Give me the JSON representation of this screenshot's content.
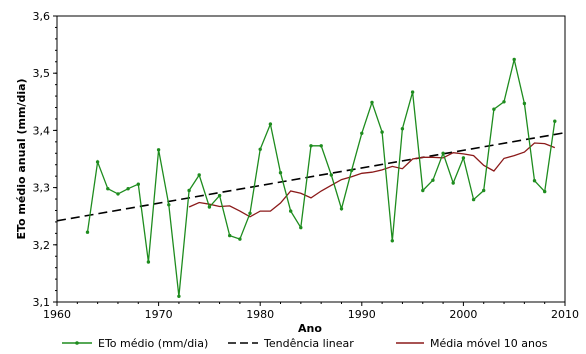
{
  "chart_data": {
    "type": "line",
    "xlabel": "Ano",
    "ylabel": "ETo médio anual (mm/dia)",
    "xlim": [
      1960,
      2010
    ],
    "ylim": [
      3.1,
      3.6
    ],
    "x_ticks": [
      "1960",
      "1970",
      "1980",
      "1990",
      "2000",
      "2010"
    ],
    "y_ticks": [
      "3,1",
      "3,2",
      "3,3",
      "3,4",
      "3,5",
      "3,6"
    ],
    "grid": "none",
    "legend_position": "bottom",
    "series": [
      {
        "name": "ETo médio (mm/dia)",
        "style": "line-with-markers",
        "color": "#1e8c1e",
        "x": [
          1963,
          1964,
          1965,
          1966,
          1967,
          1968,
          1969,
          1970,
          1971,
          1972,
          1973,
          1974,
          1975,
          1976,
          1977,
          1978,
          1979,
          1980,
          1981,
          1982,
          1983,
          1984,
          1985,
          1986,
          1987,
          1988,
          1989,
          1990,
          1991,
          1992,
          1993,
          1994,
          1995,
          1996,
          1997,
          1998,
          1999,
          2000,
          2001,
          2002,
          2003,
          2004,
          2005,
          2006,
          2007,
          2008,
          2009
        ],
        "values": [
          3.222,
          3.345,
          3.298,
          3.289,
          3.298,
          3.306,
          3.17,
          3.366,
          3.27,
          3.11,
          3.295,
          3.322,
          3.266,
          3.286,
          3.216,
          3.21,
          3.255,
          3.367,
          3.411,
          3.326,
          3.259,
          3.23,
          3.373,
          3.373,
          3.322,
          3.263,
          3.33,
          3.395,
          3.449,
          3.397,
          3.207,
          3.403,
          3.467,
          3.295,
          3.313,
          3.36,
          3.308,
          3.352,
          3.279,
          3.295,
          3.437,
          3.45,
          3.524,
          3.447,
          3.312,
          3.293,
          3.416
        ]
      },
      {
        "name": "Tendência linear",
        "style": "dashed",
        "color": "#000000",
        "x": [
          1960,
          2010
        ],
        "values": [
          3.242,
          3.396
        ]
      },
      {
        "name": "Média móvel 10 anos",
        "style": "line",
        "color": "#8b1a1a",
        "x": [
          1973,
          1974,
          1975,
          1976,
          1977,
          1978,
          1979,
          1980,
          1981,
          1982,
          1983,
          1984,
          1985,
          1986,
          1987,
          1988,
          1989,
          1990,
          1991,
          1992,
          1993,
          1994,
          1995,
          1996,
          1997,
          1998,
          1999,
          2000,
          2001,
          2002,
          2003,
          2004,
          2005,
          2006,
          2007,
          2008,
          2009
        ],
        "values": [
          3.266,
          3.274,
          3.271,
          3.267,
          3.268,
          3.259,
          3.249,
          3.259,
          3.259,
          3.273,
          3.294,
          3.29,
          3.282,
          3.294,
          3.304,
          3.314,
          3.319,
          3.325,
          3.327,
          3.331,
          3.337,
          3.333,
          3.35,
          3.353,
          3.353,
          3.352,
          3.361,
          3.359,
          3.356,
          3.339,
          3.329,
          3.351,
          3.356,
          3.362,
          3.378,
          3.377,
          3.37
        ]
      }
    ]
  }
}
